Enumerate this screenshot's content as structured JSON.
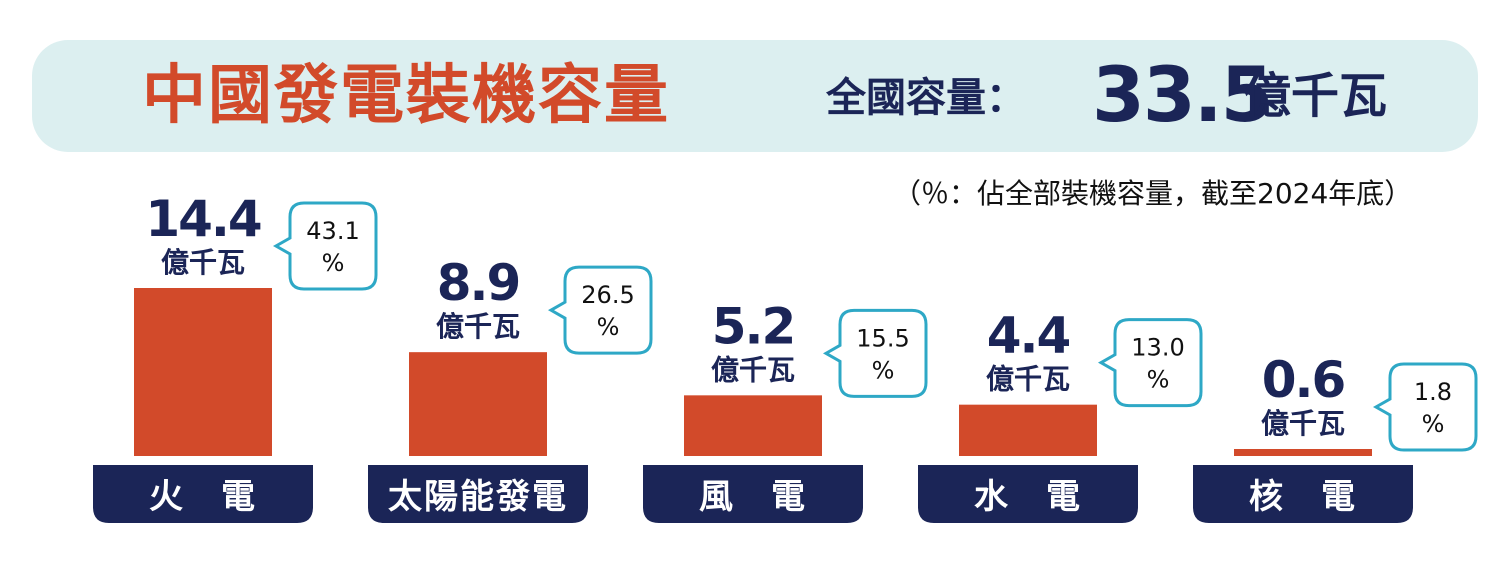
{
  "header": {
    "title": "中國發電裝機容量",
    "total_label": "全國容量：",
    "total_value": "33.5",
    "total_unit": "億千瓦"
  },
  "note": "（％：佔全部裝機容量，截至2024年底）",
  "colors": {
    "bar": "#d24a2a",
    "label_bg": "#1b2557",
    "banner_bg": "#dceff0",
    "callout_border": "#2ea8c6",
    "value_text": "#1b2557"
  },
  "chart_data": {
    "type": "bar",
    "categories": [
      "火　電",
      "太陽能發電",
      "風　電",
      "水　電",
      "核　電"
    ],
    "values": [
      14.4,
      8.9,
      5.2,
      4.4,
      0.6
    ],
    "value_labels": [
      "14.4",
      "8.9",
      "5.2",
      "4.4",
      "0.6"
    ],
    "unit": "億千瓦",
    "percentages": [
      "43.1",
      "26.5",
      "15.5",
      "13.0",
      "1.8"
    ],
    "percent_unit": "%",
    "title": "中國發電裝機容量",
    "xlabel": "",
    "ylabel": "",
    "ylim": [
      0,
      14.4
    ],
    "grid": false,
    "legend": "none"
  }
}
